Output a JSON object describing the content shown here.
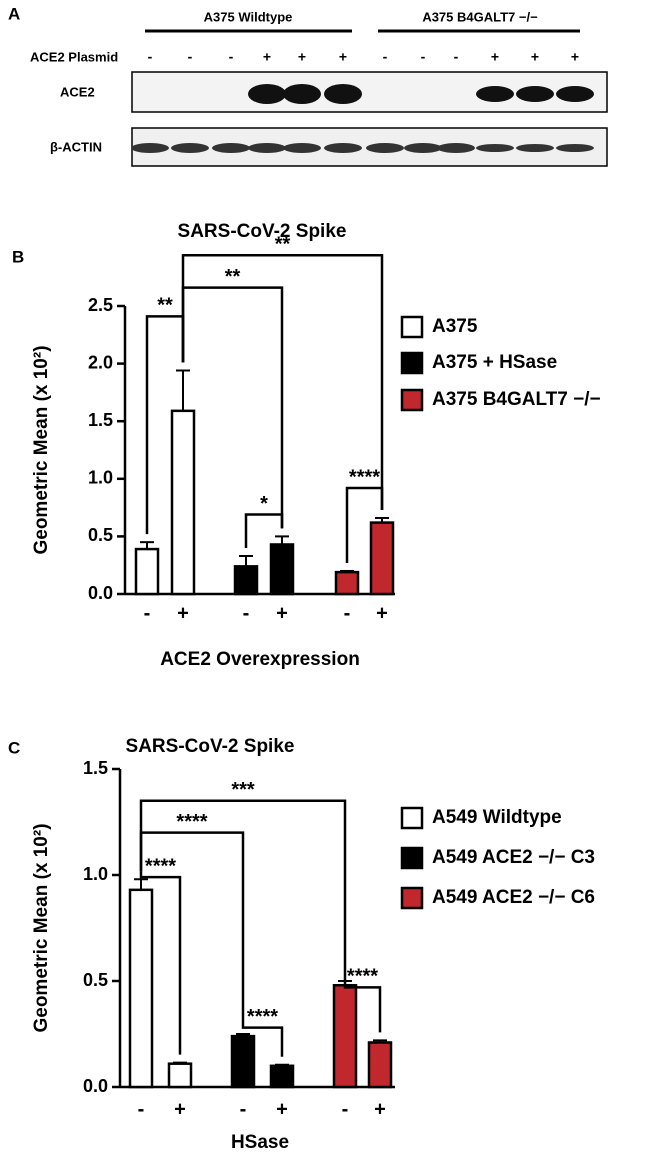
{
  "panel_a": {
    "label": "A",
    "groups": [
      "A375 Wildtype",
      "A375 B4GALT7 −/−"
    ],
    "row_label": "ACE2 Plasmid",
    "signs": [
      "-",
      "-",
      "-",
      "+",
      "+",
      "+",
      "-",
      "-",
      "-",
      "+",
      "+",
      "+"
    ],
    "blots": [
      "ACE2",
      "β-ACTIN"
    ]
  },
  "chart_data": [
    {
      "type": "bar",
      "panel_label": "B",
      "title": "SARS-CoV-2 Spike",
      "y_label": "Geometric Mean  (x 10²)",
      "x_label": "ACE2 Overexpression",
      "categories": [
        "-",
        "+"
      ],
      "series": [
        {
          "name": "A375",
          "color": "#ffffff",
          "values": [
            0.39,
            1.59
          ],
          "errors": [
            0.06,
            0.35
          ]
        },
        {
          "name": "A375 + HSase",
          "color": "#000000",
          "values": [
            0.24,
            0.43
          ],
          "errors": [
            0.09,
            0.07
          ]
        },
        {
          "name": "A375 B4GALT7 −/−",
          "color": "#c0282d",
          "values": [
            0.19,
            0.62
          ],
          "errors": [
            0.01,
            0.04
          ]
        }
      ],
      "ylim": [
        0,
        2.5
      ],
      "yticks": [
        {
          "value": 0,
          "label": "0.0"
        },
        {
          "value": 0.5,
          "label": "0.5"
        },
        {
          "value": 1,
          "label": "1.0"
        },
        {
          "value": 1.5,
          "label": "1.5"
        },
        {
          "value": 2,
          "label": "2.0"
        },
        {
          "value": 2.5,
          "label": "2.5"
        }
      ],
      "annotations": [
        "**",
        "**",
        "**",
        "*",
        "****"
      ]
    },
    {
      "type": "bar",
      "panel_label": "C",
      "title": "SARS-CoV-2 Spike",
      "y_label": "Geometric Mean (x 10²)",
      "x_label": "HSase",
      "categories": [
        "-",
        "+"
      ],
      "series": [
        {
          "name": "A549 Wildtype",
          "color": "#ffffff",
          "values": [
            0.93,
            0.11
          ],
          "errors": [
            0.05,
            0.005
          ]
        },
        {
          "name": "A549 ACE2 −/− C3",
          "color": "#000000",
          "values": [
            0.24,
            0.1
          ],
          "errors": [
            0.01,
            0.005
          ]
        },
        {
          "name": "A549 ACE2 −/− C6",
          "color": "#c0282d",
          "values": [
            0.48,
            0.21
          ],
          "errors": [
            0.02,
            0.01
          ]
        }
      ],
      "ylim": [
        0,
        1.5
      ],
      "yticks": [
        {
          "value": 0,
          "label": "0.0"
        },
        {
          "value": 0.5,
          "label": "0.5"
        },
        {
          "value": 1,
          "label": "1.0"
        },
        {
          "value": 1.5,
          "label": "1.5"
        }
      ],
      "annotations": [
        "****",
        "****",
        "***",
        "****",
        "****"
      ]
    }
  ]
}
